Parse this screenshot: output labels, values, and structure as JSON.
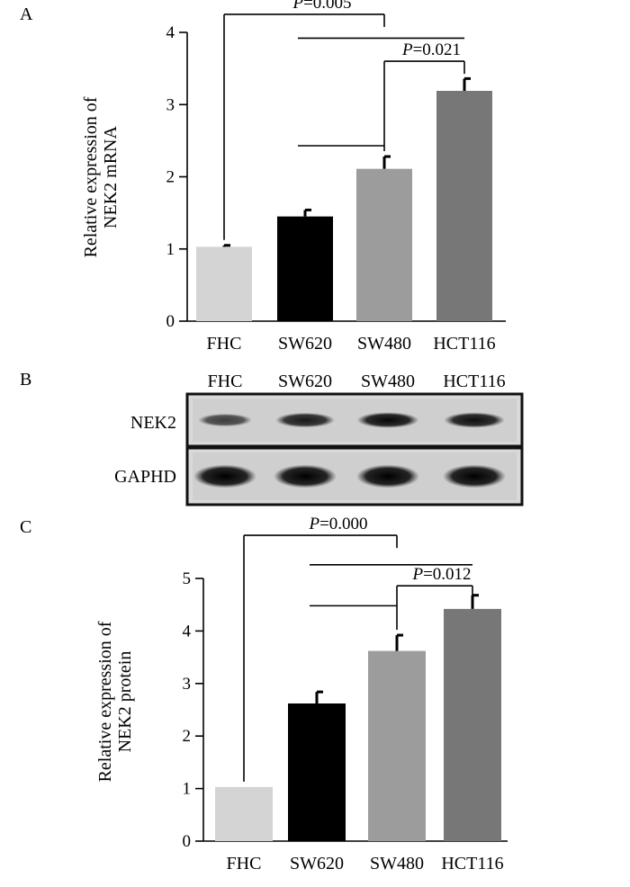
{
  "panels": {
    "a": {
      "label": "A"
    },
    "b": {
      "label": "B"
    },
    "c": {
      "label": "C"
    }
  },
  "chart_data": [
    {
      "type": "bar",
      "panel": "A",
      "ylabel_lines": [
        "Relative expression of",
        "NEK2 mRNA"
      ],
      "categories": [
        "FHC",
        "SW620",
        "SW480",
        "HCT116"
      ],
      "values": [
        1.03,
        1.45,
        2.11,
        3.19
      ],
      "errors": [
        0.02,
        0.09,
        0.17,
        0.17
      ],
      "colors": [
        "#d4d4d4",
        "#000000",
        "#9c9c9c",
        "#777777"
      ],
      "ylim": [
        0,
        4
      ],
      "yticks": [
        "0",
        "1",
        "2",
        "3",
        "4"
      ],
      "annotations": [
        {
          "p_label": "P",
          "value_text": "=0.005",
          "from": 0,
          "to": 2,
          "level": 4.25
        },
        {
          "p_label": "",
          "value_text": "",
          "from": 1,
          "to": 3,
          "level": 3.92
        },
        {
          "p_label": "P",
          "value_text": "=0.021",
          "from": 2,
          "to": 3,
          "level": 3.6
        },
        {
          "p_label": "",
          "value_text": "",
          "from": 1,
          "to": 2,
          "level": 2.43
        }
      ]
    },
    {
      "type": "bar",
      "panel": "C",
      "ylabel_lines": [
        "Relative expression of",
        "NEK2 protein"
      ],
      "categories": [
        "FHC",
        "SW620",
        "SW480",
        "HCT116"
      ],
      "values": [
        1.03,
        2.62,
        3.62,
        4.42
      ],
      "errors": [
        0.0,
        0.22,
        0.3,
        0.26
      ],
      "colors": [
        "#d4d4d4",
        "#000000",
        "#9c9c9c",
        "#777777"
      ],
      "ylim": [
        0,
        5
      ],
      "yticks": [
        "0",
        "1",
        "2",
        "3",
        "4",
        "5"
      ],
      "annotations": [
        {
          "p_label": "P",
          "value_text": "=0.000",
          "from": 0,
          "to": 2,
          "level": 5.82
        },
        {
          "p_label": "",
          "value_text": "",
          "from": 1,
          "to": 3,
          "level": 5.26
        },
        {
          "p_label": "P",
          "value_text": "=0.012",
          "from": 2,
          "to": 3,
          "level": 4.86
        },
        {
          "p_label": "",
          "value_text": "",
          "from": 1,
          "to": 2,
          "level": 4.48
        }
      ]
    }
  ],
  "western_blot": {
    "lanes": [
      "FHC",
      "SW620",
      "SW480",
      "HCT116"
    ],
    "rows": [
      {
        "label": "NEK2",
        "intensities": [
          0.55,
          0.82,
          0.95,
          0.9
        ]
      },
      {
        "label": "GAPHD",
        "intensities": [
          1.0,
          1.0,
          1.0,
          1.0
        ]
      }
    ]
  }
}
